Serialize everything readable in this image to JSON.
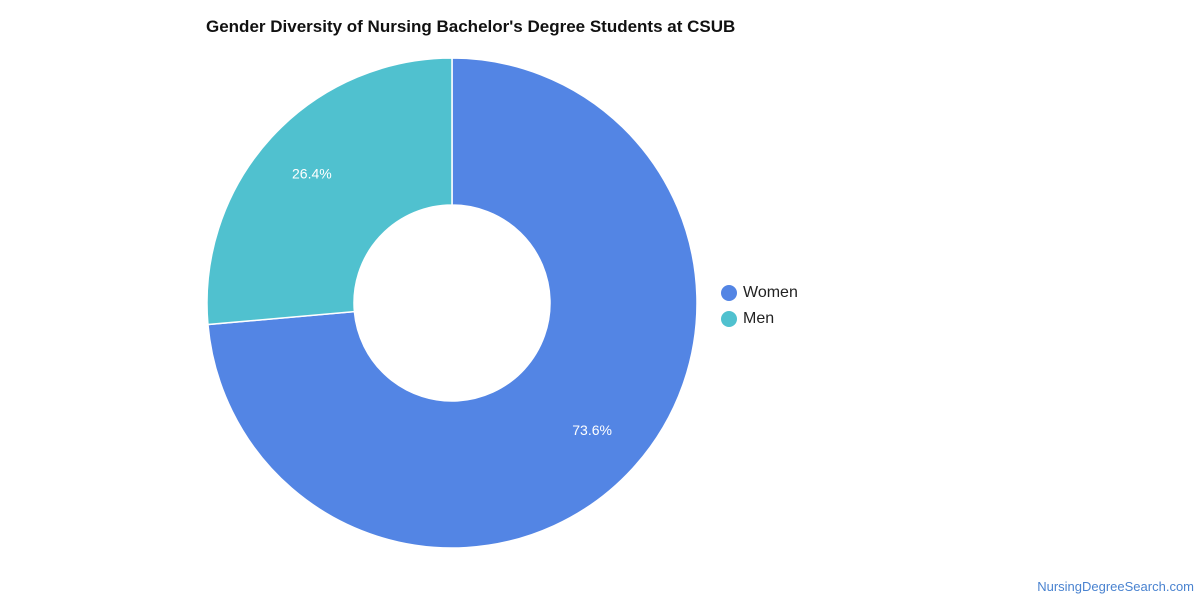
{
  "chart_data": {
    "type": "pie",
    "title": "Gender Diversity of Nursing Bachelor's Degree Students at CSUB",
    "donut": true,
    "slices": [
      {
        "label": "Women",
        "value": 73.6,
        "display": "73.6%",
        "color": "#5385E4"
      },
      {
        "label": "Men",
        "value": 26.4,
        "display": "26.4%",
        "color": "#50C1CF"
      }
    ],
    "legend_placement": "right"
  },
  "legend": {
    "items": [
      {
        "label": "Women",
        "color": "#5385E4"
      },
      {
        "label": "Men",
        "color": "#50C1CF"
      }
    ]
  },
  "footer": {
    "source": "NursingDegreeSearch.com"
  }
}
